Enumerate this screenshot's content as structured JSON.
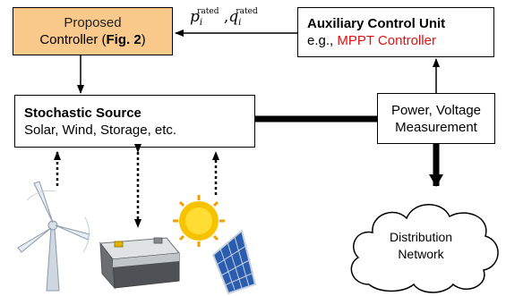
{
  "controller": {
    "line1": "Proposed",
    "line2_pre": "Controller (",
    "line2_bold": "Fig. 2",
    "line2_post": ")"
  },
  "signal": {
    "p": "p",
    "q": "q",
    "sub": "i",
    "sup": "rated"
  },
  "aux": {
    "title": "Auxiliary Control Unit",
    "line2_pre": "e.g., ",
    "line2_red": "MPPT Controller"
  },
  "source": {
    "title": "Stochastic Source",
    "subtitle": "Solar, Wind, Storage, etc."
  },
  "measurement": {
    "line1": "Power, Voltage",
    "line2": "Measurement"
  },
  "network": {
    "line1": "Distribution",
    "line2": "Network"
  },
  "colors": {
    "controller_fill": "#f9c98b",
    "highlight": "#e01010"
  },
  "icons": [
    "wind-turbine-icon",
    "battery-icon",
    "sun-icon",
    "solar-panel-icon"
  ]
}
